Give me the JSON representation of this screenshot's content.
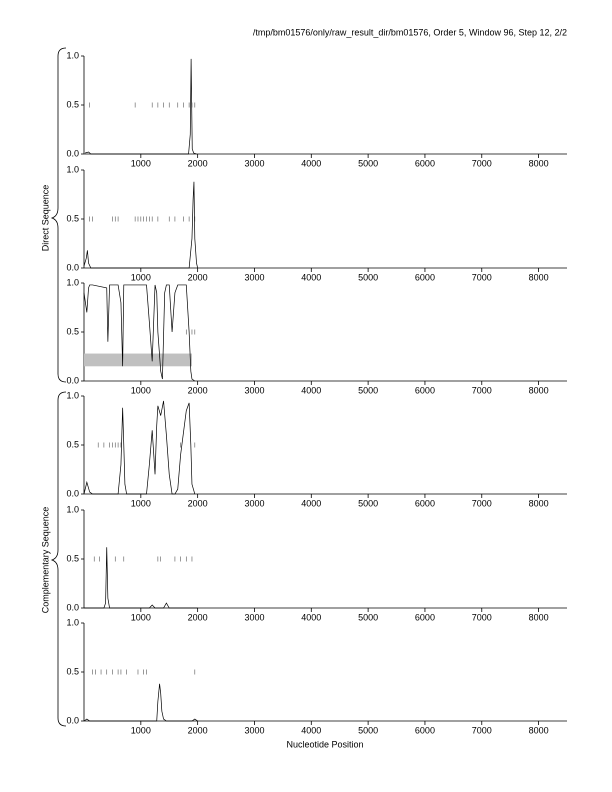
{
  "title": "/tmp/bm01576/only/raw_result_dir/bm01576, Order 5, Window 96, Step 12, 2/2",
  "x_label": "Nucleotide Position",
  "group_labels": [
    "Direct Sequence",
    "Complementary Sequence"
  ],
  "chart_data": [
    {
      "type": "line",
      "color": "#000000",
      "xlim": [
        0,
        8500
      ],
      "xticks": [
        1000,
        2000,
        3000,
        4000,
        5000,
        6000,
        7000,
        8000
      ],
      "ylim": [
        0,
        1
      ],
      "yticks": [
        {
          "value": 0,
          "label": "0.0"
        },
        {
          "value": 0.5,
          "label": "0.5"
        },
        {
          "value": 1,
          "label": "1.0"
        }
      ],
      "x": [
        20,
        80,
        120,
        1840,
        1870,
        1885,
        1895,
        1905,
        1930,
        1980
      ],
      "y": [
        0.01,
        0.02,
        0,
        0,
        0.2,
        0.97,
        0.5,
        0.05,
        0.01,
        0
      ],
      "stops": {
        "x": [
          100,
          900,
          1200,
          1300,
          1400,
          1500,
          1650,
          1750,
          1850,
          1900,
          1950
        ],
        "y": 0.5
      }
    },
    {
      "type": "line",
      "color": "#000000",
      "xlim": [
        0,
        8500
      ],
      "xticks": [
        1000,
        2000,
        3000,
        4000,
        5000,
        6000,
        7000,
        8000
      ],
      "ylim": [
        0,
        1
      ],
      "yticks": [
        {
          "value": 0,
          "label": "0.0"
        },
        {
          "value": 0.5,
          "label": "0.5"
        },
        {
          "value": 1,
          "label": "1.0"
        }
      ],
      "x": [
        0,
        40,
        60,
        80,
        120,
        1850,
        1900,
        1920,
        1935,
        1950,
        1980,
        2000
      ],
      "y": [
        0.02,
        0.1,
        0.18,
        0.05,
        0,
        0,
        0.3,
        0.7,
        0.88,
        0.3,
        0.05,
        0
      ],
      "stops": {
        "x": [
          100,
          150,
          500,
          550,
          600,
          900,
          950,
          1000,
          1050,
          1100,
          1150,
          1200,
          1300,
          1500,
          1600,
          1750,
          1850,
          1950
        ],
        "y": 0.5
      }
    },
    {
      "type": "line",
      "color": "#000000",
      "xlim": [
        0,
        8500
      ],
      "xticks": [
        1000,
        2000,
        3000,
        4000,
        5000,
        6000,
        7000,
        8000
      ],
      "ylim": [
        0,
        1
      ],
      "yticks": [
        {
          "value": 0,
          "label": "0.0"
        },
        {
          "value": 0.5,
          "label": "0.5"
        },
        {
          "value": 1,
          "label": "1.0"
        }
      ],
      "x": [
        0,
        50,
        80,
        100,
        150,
        400,
        420,
        450,
        600,
        650,
        680,
        700,
        750,
        1100,
        1150,
        1200,
        1250,
        1280,
        1300,
        1350,
        1380,
        1420,
        1450,
        1500,
        1550,
        1600,
        1650,
        1700,
        1800,
        1850,
        1880,
        1900,
        1950
      ],
      "y": [
        0.9,
        0.7,
        0.95,
        0.98,
        0.98,
        0.95,
        0.4,
        0.98,
        0.98,
        0.8,
        0.15,
        0.98,
        0.98,
        0.98,
        0.6,
        0.2,
        0.98,
        0.9,
        0.5,
        0.1,
        0.02,
        0.9,
        0.98,
        0.98,
        0.5,
        0.9,
        0.98,
        0.98,
        0.98,
        0.5,
        0.1,
        0.02,
        0
      ],
      "stops": {
        "x": [
          1800,
          1900,
          1950
        ],
        "y": 0.5
      },
      "region": {
        "x": [
          0,
          1900
        ],
        "y": [
          0.15,
          0.28
        ],
        "color": "#c0c0c0"
      }
    },
    {
      "type": "line",
      "color": "#000000",
      "xlim": [
        0,
        8500
      ],
      "xticks": [
        1000,
        2000,
        3000,
        4000,
        5000,
        6000,
        7000,
        8000
      ],
      "ylim": [
        0,
        1
      ],
      "yticks": [
        {
          "value": 0,
          "label": "0.0"
        },
        {
          "value": 0.5,
          "label": "0.5"
        },
        {
          "value": 1,
          "label": "1.0"
        }
      ],
      "x": [
        0,
        50,
        100,
        150,
        600,
        650,
        680,
        700,
        720,
        750,
        1100,
        1150,
        1200,
        1250,
        1280,
        1300,
        1350,
        1400,
        1450,
        1500,
        1550,
        1600,
        1650,
        1700,
        1800,
        1850,
        1880,
        1900,
        1950
      ],
      "y": [
        0,
        0.12,
        0.02,
        0,
        0,
        0.3,
        0.88,
        0.5,
        0.1,
        0,
        0,
        0.3,
        0.65,
        0.2,
        0.7,
        0.9,
        0.8,
        0.95,
        0.6,
        0.2,
        0,
        0,
        0.05,
        0.4,
        0.85,
        0.93,
        0.5,
        0.1,
        0
      ],
      "stops": {
        "x": [
          250,
          350,
          450,
          500,
          550,
          600,
          650,
          1700,
          1950
        ],
        "y": 0.5
      }
    },
    {
      "type": "line",
      "color": "#000000",
      "xlim": [
        0,
        8500
      ],
      "xticks": [
        1000,
        2000,
        3000,
        4000,
        5000,
        6000,
        7000,
        8000
      ],
      "ylim": [
        0,
        1
      ],
      "yticks": [
        {
          "value": 0,
          "label": "0.0"
        },
        {
          "value": 0.5,
          "label": "0.5"
        },
        {
          "value": 1,
          "label": "1.0"
        }
      ],
      "x": [
        0,
        350,
        380,
        400,
        420,
        450,
        1150,
        1200,
        1250,
        1400,
        1450,
        1500,
        2000
      ],
      "y": [
        0,
        0,
        0.05,
        0.62,
        0.1,
        0,
        0,
        0.03,
        0,
        0,
        0.05,
        0,
        0
      ],
      "stops": {
        "x": [
          180,
          270,
          550,
          700,
          1300,
          1350,
          1600,
          1700,
          1800,
          1900
        ],
        "y": 0.5
      }
    },
    {
      "type": "line",
      "color": "#000000",
      "xlim": [
        0,
        8500
      ],
      "xticks": [
        1000,
        2000,
        3000,
        4000,
        5000,
        6000,
        7000,
        8000
      ],
      "ylim": [
        0,
        1
      ],
      "yticks": [
        {
          "value": 0,
          "label": "0.0"
        },
        {
          "value": 0.5,
          "label": "0.5"
        },
        {
          "value": 1,
          "label": "1.0"
        }
      ],
      "x": [
        0,
        50,
        100,
        1280,
        1300,
        1330,
        1350,
        1370,
        1400,
        1450,
        1900,
        1950,
        2000
      ],
      "y": [
        0,
        0.02,
        0,
        0,
        0.2,
        0.38,
        0.28,
        0.1,
        0.02,
        0,
        0,
        0.02,
        0
      ],
      "stops": {
        "x": [
          150,
          200,
          300,
          400,
          500,
          600,
          650,
          750,
          950,
          1050,
          1100,
          1950
        ],
        "y": 0.5
      }
    }
  ]
}
